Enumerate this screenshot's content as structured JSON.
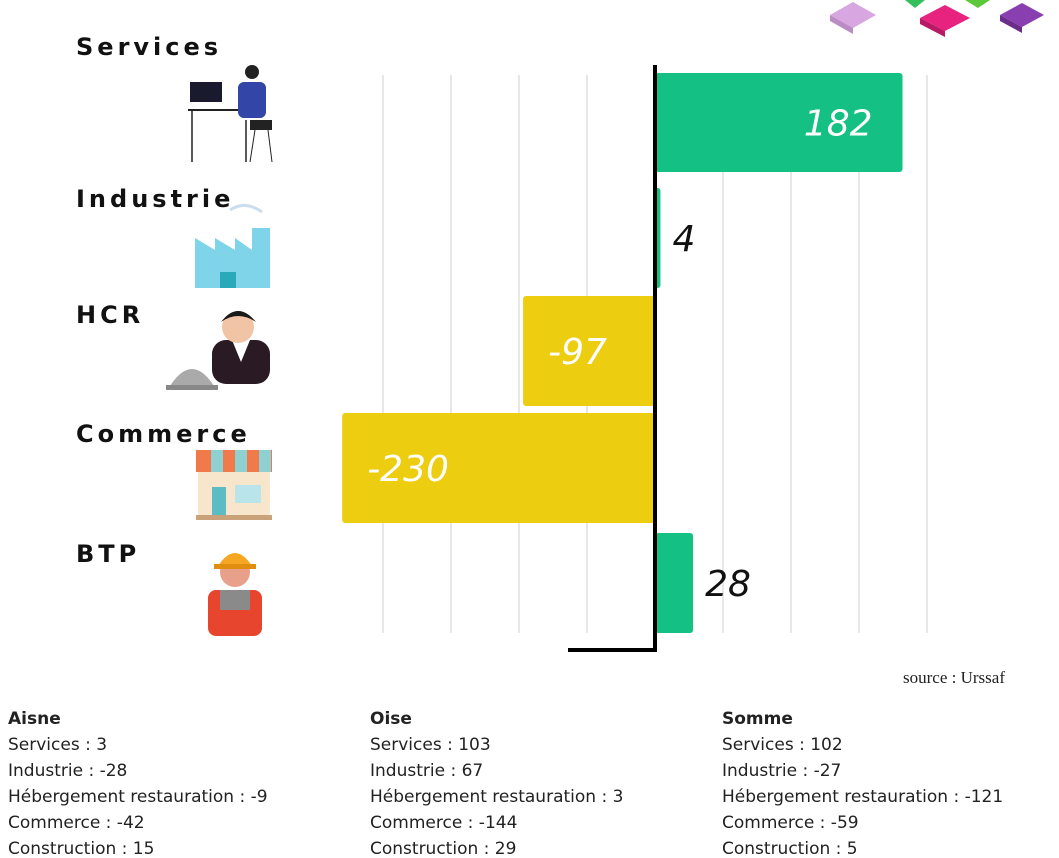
{
  "chart_data": {
    "type": "barh",
    "categories": [
      "Services",
      "Industrie",
      "HCR",
      "Commerce",
      "BTP"
    ],
    "values": [
      182,
      4,
      -97,
      -230,
      28
    ],
    "positive_color": "#14c084",
    "negative_color": "#edcd10",
    "xlim": [
      -250,
      200
    ],
    "xticks": [
      -200,
      -150,
      -100,
      -50,
      0,
      50,
      100,
      150,
      200
    ],
    "grid": true
  },
  "source": "source : Urssaf",
  "regions": [
    {
      "name": "Aisne",
      "lines": [
        "Services : 3",
        "Industrie : -28",
        "Hébergement restauration : -9",
        "Commerce : -42",
        "Construction : 15"
      ]
    },
    {
      "name": "Oise",
      "lines": [
        "Services : 103",
        "Industrie : 67",
        "Hébergement restauration : 3",
        "Commerce : -144",
        "Construction : 29"
      ]
    },
    {
      "name": "Somme",
      "lines": [
        "Services : 102",
        "Industrie : -27",
        "Hébergement restauration : -121",
        "Commerce : -59",
        "Construction : 5"
      ]
    }
  ]
}
